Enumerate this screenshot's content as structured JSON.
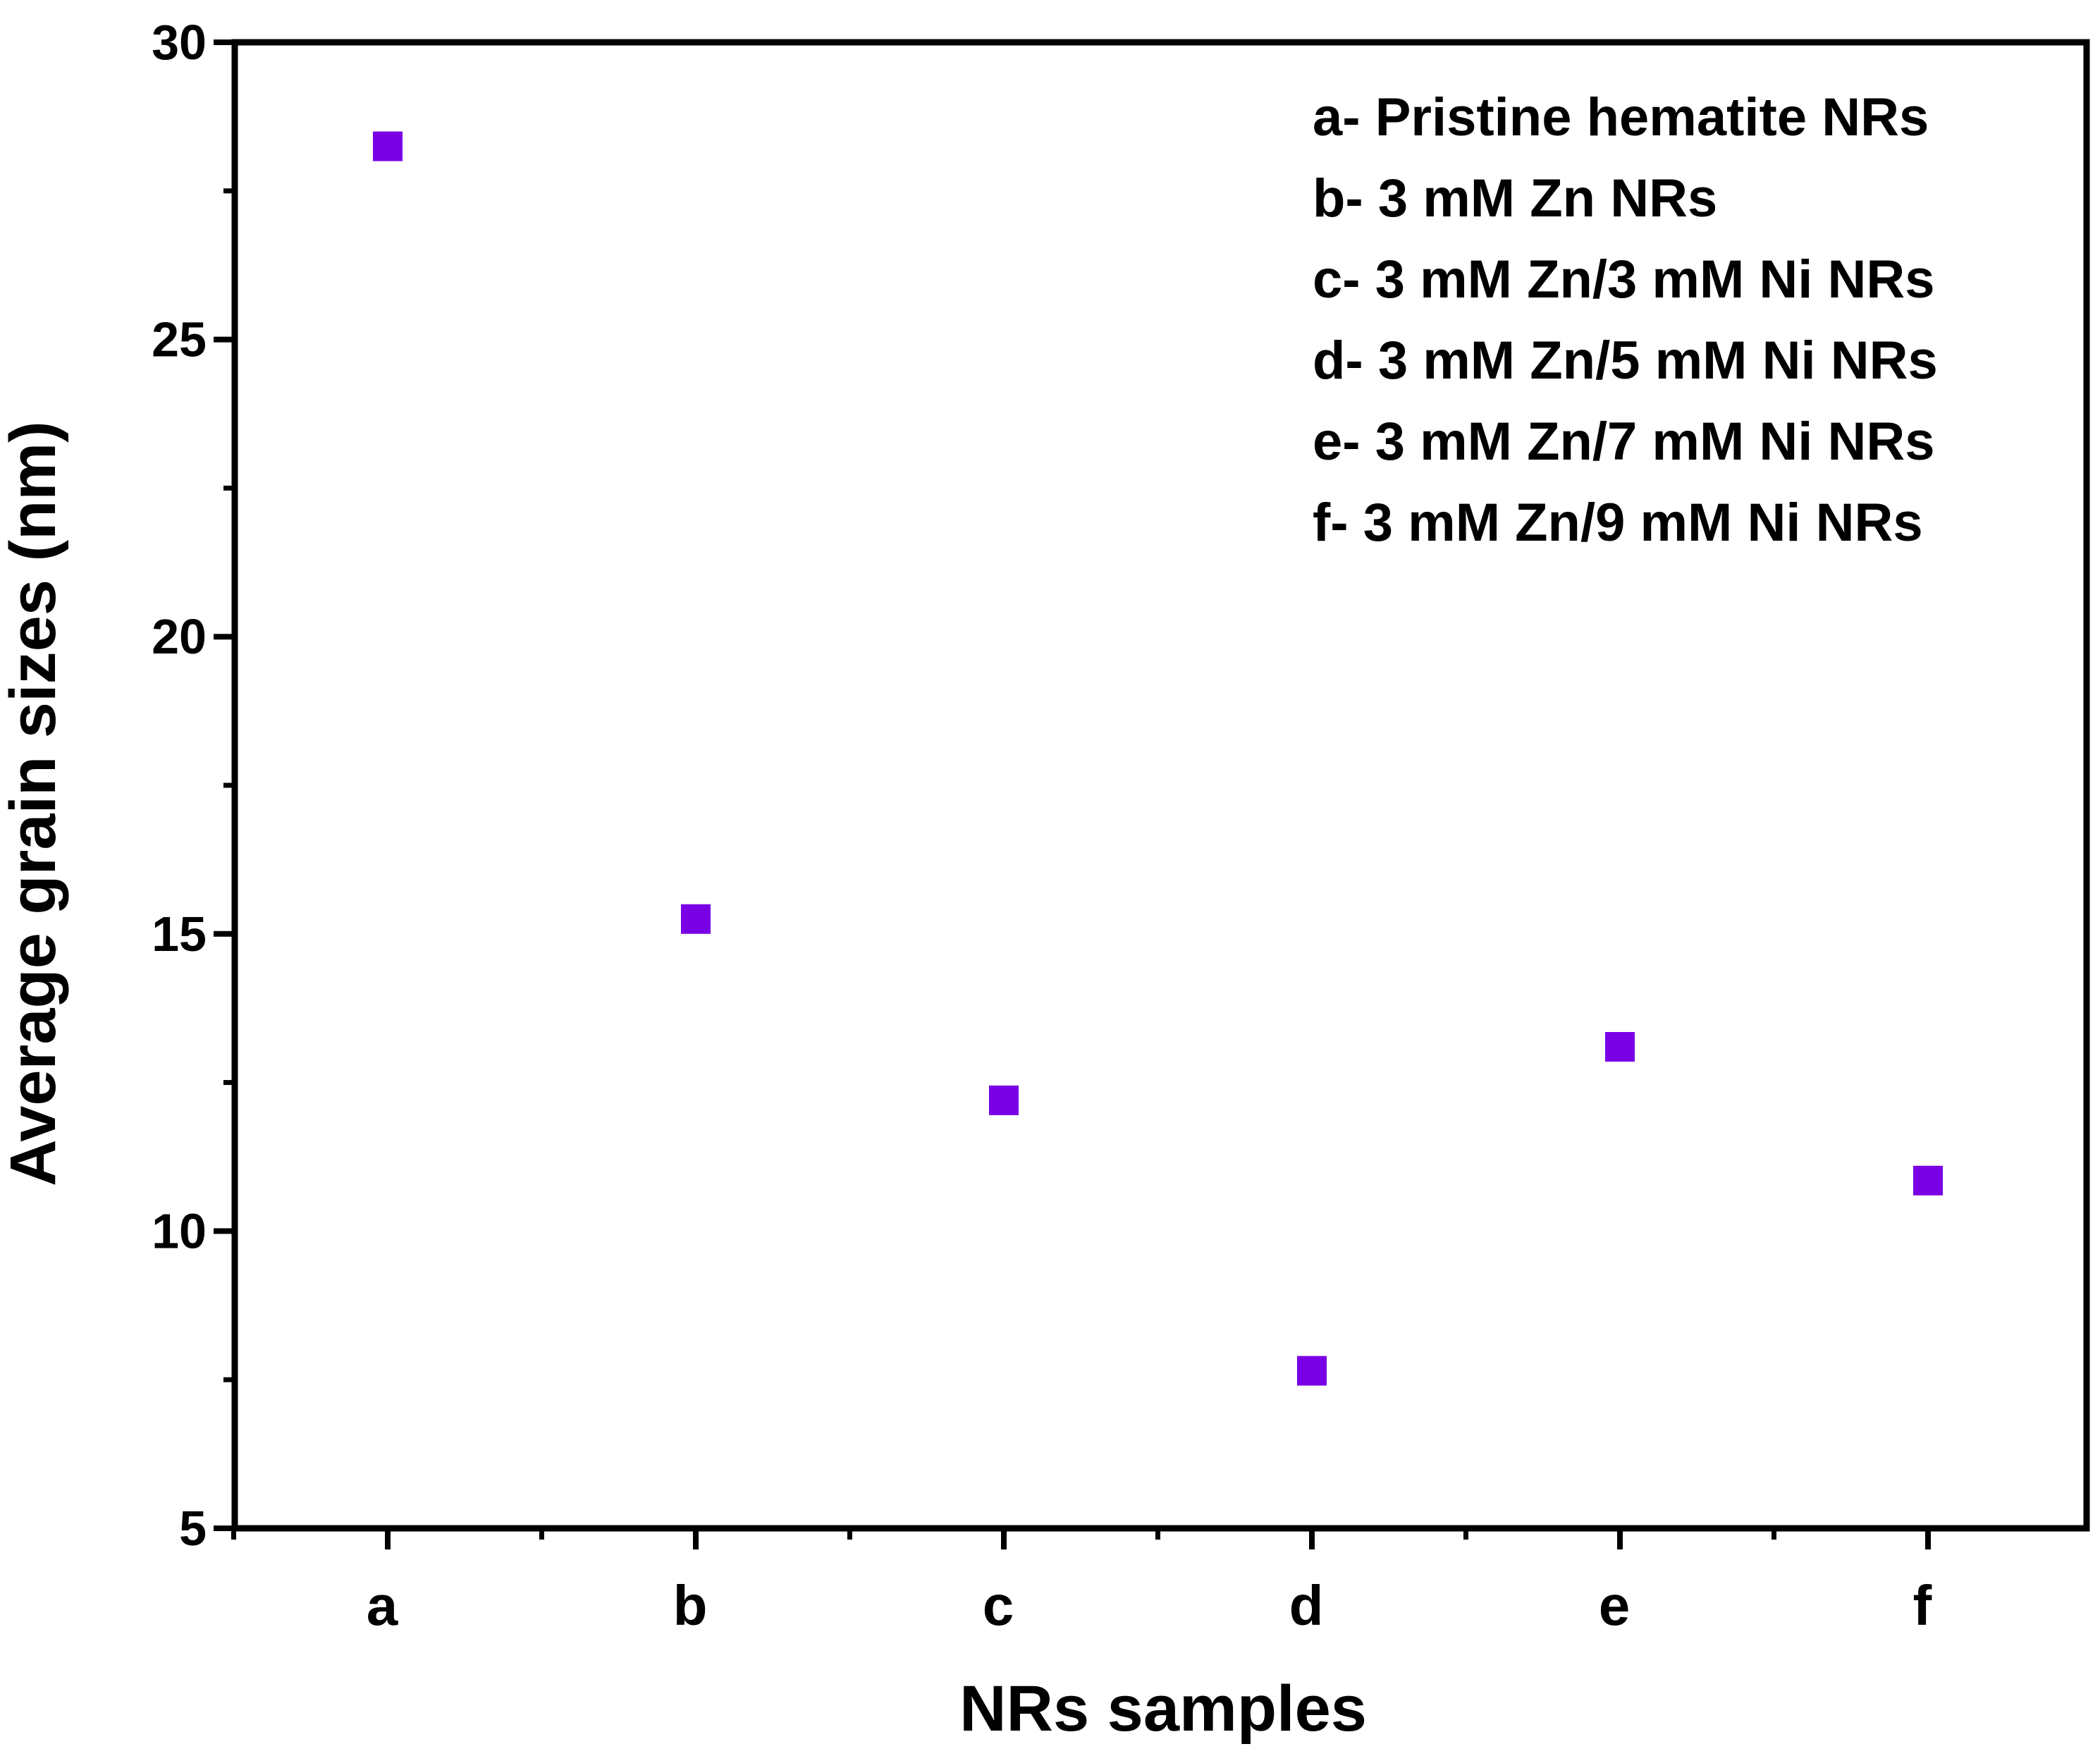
{
  "chart_data": {
    "type": "scatter",
    "title": "",
    "xlabel": "NRs samples",
    "ylabel": "Average grain sizes (nm)",
    "categories": [
      "a",
      "b",
      "c",
      "d",
      "e",
      "f"
    ],
    "series": [
      {
        "name": "Average grain size",
        "color": "#7a00e6",
        "marker": "square",
        "values": [
          28.25,
          15.25,
          12.2,
          7.65,
          13.1,
          10.85
        ]
      }
    ],
    "ylim": [
      5,
      30
    ],
    "yticks": [
      5,
      10,
      15,
      20,
      25,
      30
    ],
    "grid": false,
    "legend_position": "top-right",
    "legend": [
      "a- Pristine hematite NRs",
      "b- 3 mM Zn NRs",
      "c- 3 mM Zn/3 mM Ni NRs",
      "d- 3 mM Zn/5 mM Ni NRs",
      "e- 3 mM Zn/7 mM Ni NRs",
      "f- 3 mM Zn/9 mM Ni NRs"
    ]
  }
}
